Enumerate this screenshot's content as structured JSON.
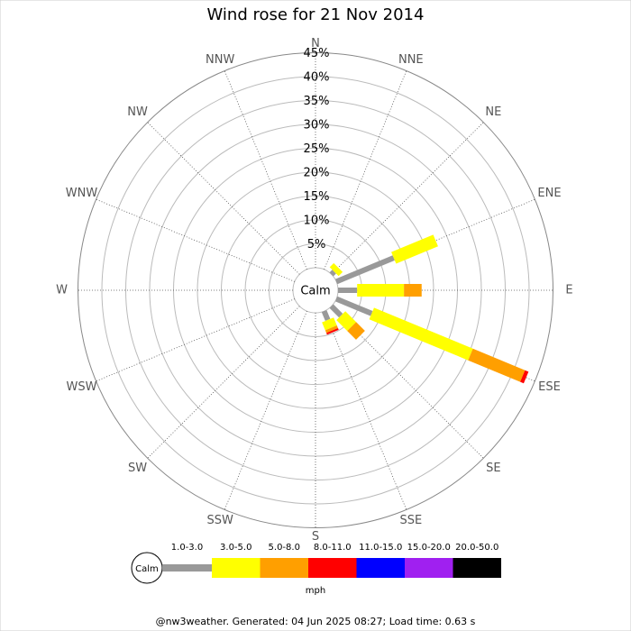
{
  "chart_data": {
    "type": "wind_rose",
    "title": "Wind rose for 21 Nov 2014",
    "directions": [
      "N",
      "NNE",
      "NE",
      "ENE",
      "E",
      "ESE",
      "SE",
      "SSE",
      "S",
      "SSW",
      "SW",
      "WSW",
      "W",
      "WNW",
      "NW",
      "NNW"
    ],
    "calm_label": "Calm",
    "rlim": [
      0,
      45
    ],
    "rticks": [
      {
        "value": 5,
        "label": "5%"
      },
      {
        "value": 10,
        "label": "10%"
      },
      {
        "value": 15,
        "label": "15%"
      },
      {
        "value": 20,
        "label": "20%"
      },
      {
        "value": 25,
        "label": "25%"
      },
      {
        "value": 30,
        "label": "30%"
      },
      {
        "value": 35,
        "label": "35%"
      },
      {
        "value": 40,
        "label": "40%"
      },
      {
        "value": 45,
        "label": "45%"
      }
    ],
    "series": [
      {
        "name": "1.0-3.0",
        "color": "#999999",
        "values": [
          0,
          0,
          0.8,
          13,
          4,
          8,
          2.8,
          2,
          0,
          0,
          0,
          0,
          0,
          0,
          0,
          0
        ]
      },
      {
        "name": "3.0-5.0",
        "color": "#ffff00",
        "values": [
          0,
          0,
          1.2,
          9.5,
          9.8,
          22.4,
          3.2,
          1.8,
          0,
          0,
          0,
          0,
          0,
          0,
          0,
          0
        ]
      },
      {
        "name": "5.0-8.0",
        "color": "#ff9f00",
        "values": [
          0,
          0,
          0,
          0,
          3.7,
          11.8,
          2.6,
          0.6,
          0,
          0,
          0,
          0,
          0,
          0,
          0,
          0
        ]
      },
      {
        "name": "8.0-11.0",
        "color": "#ff0000",
        "values": [
          0,
          0,
          0,
          0,
          0,
          0.8,
          0,
          0.4,
          0,
          0,
          0,
          0,
          0,
          0,
          0,
          0
        ]
      },
      {
        "name": "11.0-15.0",
        "color": "#0000ff",
        "values": [
          0,
          0,
          0,
          0,
          0,
          0,
          0,
          0,
          0,
          0,
          0,
          0,
          0,
          0,
          0,
          0
        ]
      },
      {
        "name": "15.0-20.0",
        "color": "#a020f0",
        "values": [
          0,
          0,
          0,
          0,
          0,
          0,
          0,
          0,
          0,
          0,
          0,
          0,
          0,
          0,
          0,
          0
        ]
      },
      {
        "name": "20.0-50.0",
        "color": "#000000",
        "values": [
          0,
          0,
          0,
          0,
          0,
          0,
          0,
          0,
          0,
          0,
          0,
          0,
          0,
          0,
          0,
          0
        ]
      }
    ],
    "legend_unit": "mph",
    "footer": "@nw3weather. Generated: 04 Jun 2025 08:27; Load time: 0.63 s"
  }
}
